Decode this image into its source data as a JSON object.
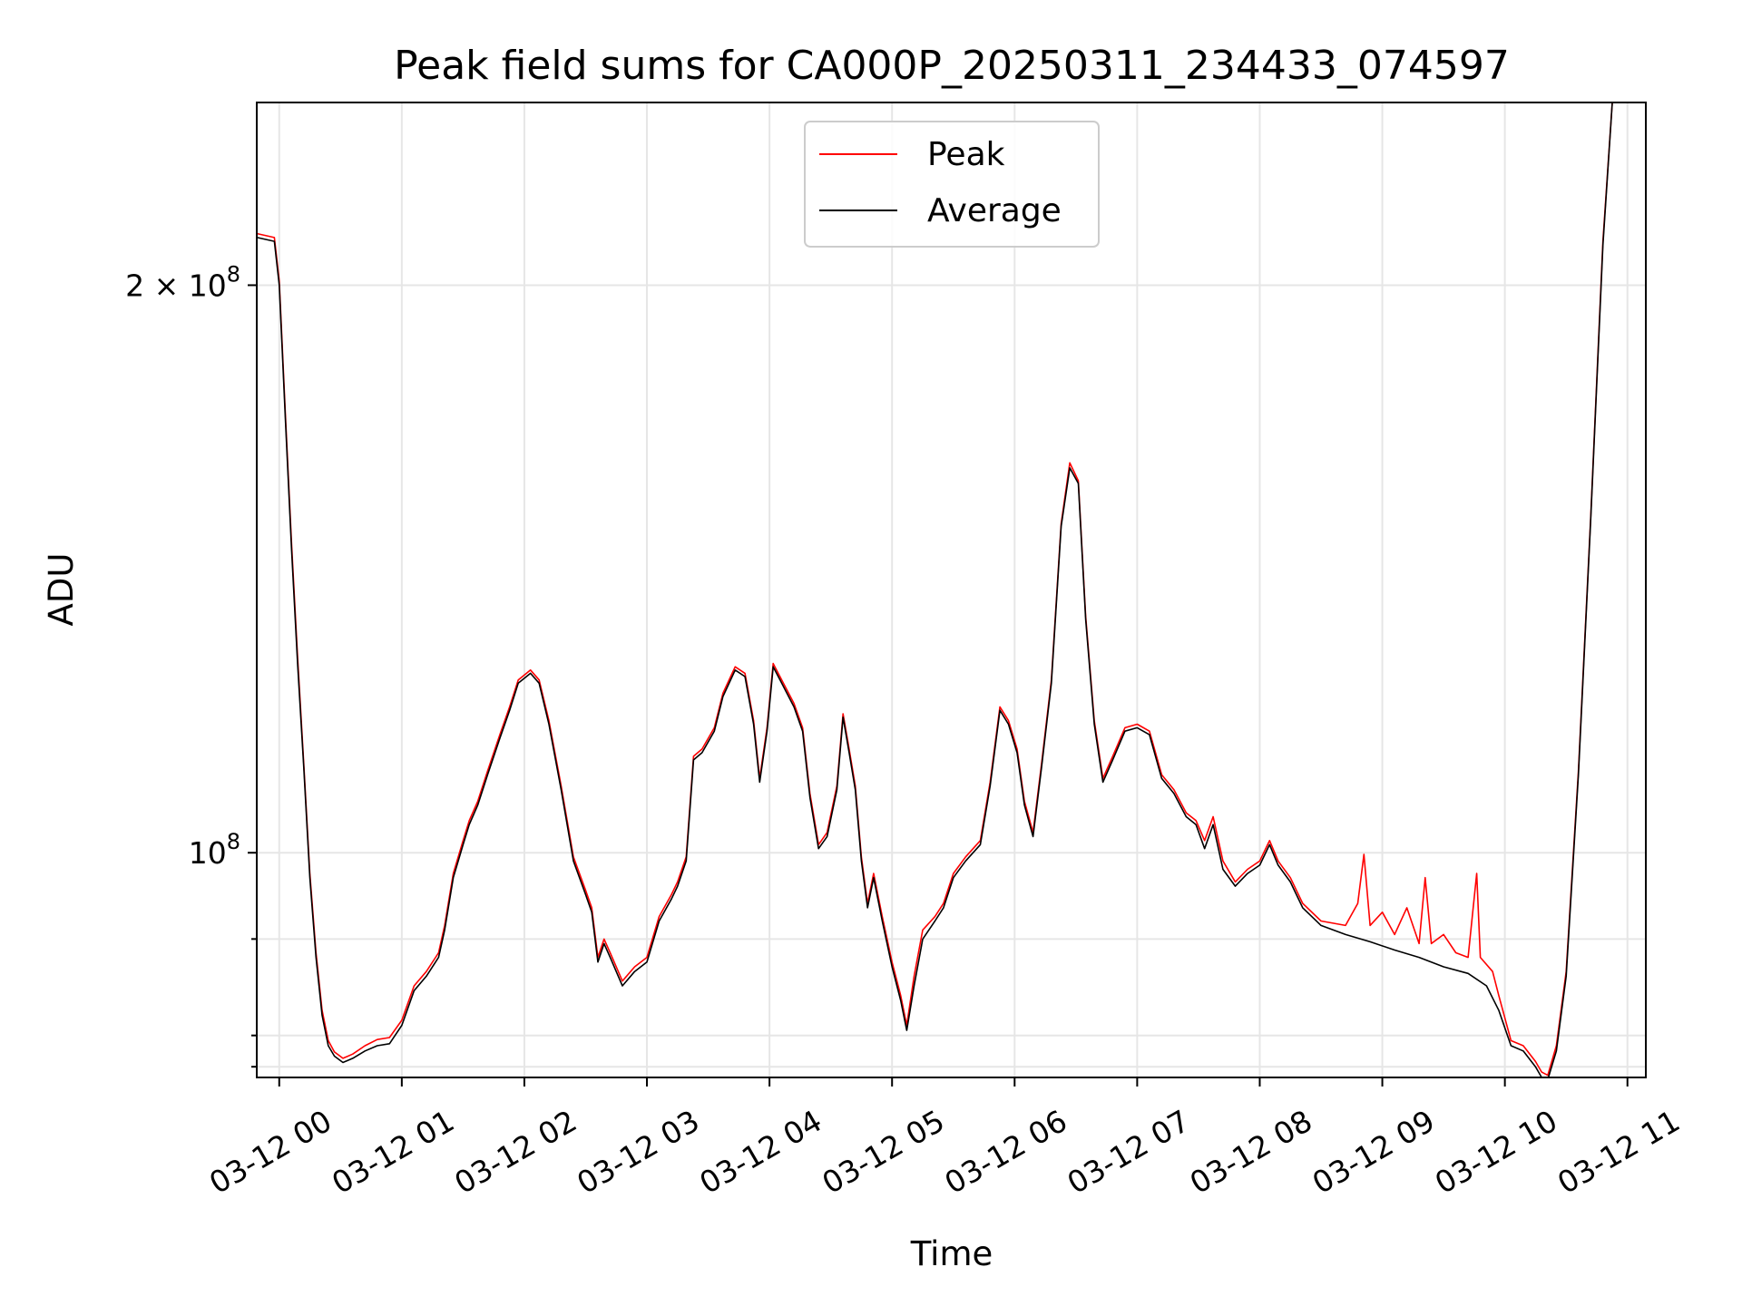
{
  "chart_data": {
    "type": "line",
    "title": "Peak field sums for CA000P_20250311_234433_074597",
    "xlabel": "Time",
    "ylabel": "ADU",
    "y_scale": "log",
    "grid": true,
    "legend_placement": "upper-center",
    "xlim": [
      "03-11 23:49",
      "03-12 11:09"
    ],
    "ylim": [
      76000000,
      250000000
    ],
    "x_tick_labels": [
      "03-12 00",
      "03-12 01",
      "03-12 02",
      "03-12 03",
      "03-12 04",
      "03-12 05",
      "03-12 06",
      "03-12 07",
      "03-12 08",
      "03-12 09",
      "03-12 10",
      "03-12 11"
    ],
    "x_tick_hours": [
      0,
      1,
      2,
      3,
      4,
      5,
      6,
      7,
      8,
      9,
      10,
      11
    ],
    "y_major_ticks": [
      {
        "value": 100000000,
        "label_base": "10",
        "label_exp": "8"
      },
      {
        "value": 200000000,
        "label_base": "2 × 10",
        "label_exp": "8"
      }
    ],
    "y_minor_ticks": [
      80000000,
      90000000,
      77000000
    ],
    "series": [
      {
        "name": "Average",
        "color": "#000000",
        "points": [
          [
            -0.18,
            212000000
          ],
          [
            -0.04,
            211000000
          ],
          [
            0.0,
            200000000
          ],
          [
            0.05,
            170000000
          ],
          [
            0.1,
            145000000
          ],
          [
            0.15,
            126000000
          ],
          [
            0.2,
            111000000
          ],
          [
            0.25,
            97000000
          ],
          [
            0.3,
            88000000
          ],
          [
            0.35,
            82000000
          ],
          [
            0.4,
            79000000
          ],
          [
            0.45,
            78000000
          ],
          [
            0.52,
            77400000
          ],
          [
            0.6,
            77800000
          ],
          [
            0.7,
            78500000
          ],
          [
            0.8,
            79000000
          ],
          [
            0.9,
            79200000
          ],
          [
            1.0,
            81000000
          ],
          [
            1.1,
            84500000
          ],
          [
            1.2,
            86000000
          ],
          [
            1.3,
            88000000
          ],
          [
            1.35,
            91000000
          ],
          [
            1.42,
            97000000
          ],
          [
            1.5,
            101000000
          ],
          [
            1.55,
            103500000
          ],
          [
            1.62,
            106000000
          ],
          [
            1.7,
            110000000
          ],
          [
            1.8,
            115000000
          ],
          [
            1.88,
            119000000
          ],
          [
            1.95,
            123000000
          ],
          [
            2.05,
            124500000
          ],
          [
            2.12,
            123000000
          ],
          [
            2.2,
            117000000
          ],
          [
            2.3,
            108000000
          ],
          [
            2.4,
            99000000
          ],
          [
            2.5,
            95000000
          ],
          [
            2.55,
            93000000
          ],
          [
            2.6,
            87500000
          ],
          [
            2.65,
            89500000
          ],
          [
            2.7,
            88000000
          ],
          [
            2.8,
            85000000
          ],
          [
            2.9,
            86500000
          ],
          [
            3.0,
            87500000
          ],
          [
            3.1,
            92000000
          ],
          [
            3.2,
            94500000
          ],
          [
            3.25,
            96000000
          ],
          [
            3.32,
            99000000
          ],
          [
            3.38,
            112000000
          ],
          [
            3.45,
            113000000
          ],
          [
            3.55,
            116000000
          ],
          [
            3.62,
            121000000
          ],
          [
            3.72,
            125000000
          ],
          [
            3.8,
            124000000
          ],
          [
            3.87,
            117000000
          ],
          [
            3.92,
            109000000
          ],
          [
            3.98,
            116000000
          ],
          [
            4.03,
            125500000
          ],
          [
            4.1,
            123000000
          ],
          [
            4.2,
            119500000
          ],
          [
            4.27,
            116000000
          ],
          [
            4.33,
            107000000
          ],
          [
            4.4,
            100500000
          ],
          [
            4.47,
            102000000
          ],
          [
            4.55,
            108000000
          ],
          [
            4.6,
            118000000
          ],
          [
            4.65,
            113000000
          ],
          [
            4.7,
            108000000
          ],
          [
            4.75,
            99000000
          ],
          [
            4.8,
            93500000
          ],
          [
            4.85,
            97000000
          ],
          [
            4.92,
            92000000
          ],
          [
            5.0,
            87000000
          ],
          [
            5.07,
            83500000
          ],
          [
            5.12,
            80500000
          ],
          [
            5.18,
            85000000
          ],
          [
            5.25,
            90000000
          ],
          [
            5.35,
            92000000
          ],
          [
            5.42,
            93500000
          ],
          [
            5.5,
            97000000
          ],
          [
            5.6,
            99000000
          ],
          [
            5.72,
            101000000
          ],
          [
            5.8,
            108500000
          ],
          [
            5.88,
            119000000
          ],
          [
            5.95,
            117000000
          ],
          [
            6.02,
            113000000
          ],
          [
            6.08,
            106000000
          ],
          [
            6.15,
            102000000
          ],
          [
            6.22,
            111000000
          ],
          [
            6.3,
            123000000
          ],
          [
            6.38,
            149000000
          ],
          [
            6.45,
            160000000
          ],
          [
            6.52,
            157000000
          ],
          [
            6.58,
            133000000
          ],
          [
            6.65,
            117000000
          ],
          [
            6.72,
            109000000
          ],
          [
            6.8,
            112000000
          ],
          [
            6.9,
            116000000
          ],
          [
            7.0,
            116500000
          ],
          [
            7.1,
            115500000
          ],
          [
            7.2,
            109500000
          ],
          [
            7.3,
            107500000
          ],
          [
            7.4,
            104500000
          ],
          [
            7.48,
            103500000
          ],
          [
            7.55,
            100500000
          ],
          [
            7.62,
            103500000
          ],
          [
            7.7,
            98000000
          ],
          [
            7.8,
            96000000
          ],
          [
            7.9,
            97500000
          ],
          [
            8.0,
            98500000
          ],
          [
            8.08,
            101000000
          ],
          [
            8.15,
            98500000
          ],
          [
            8.25,
            96500000
          ],
          [
            8.35,
            93500000
          ],
          [
            8.5,
            91500000
          ],
          [
            8.7,
            90500000
          ],
          [
            8.9,
            89700000
          ],
          [
            9.1,
            88800000
          ],
          [
            9.3,
            88000000
          ],
          [
            9.5,
            87000000
          ],
          [
            9.7,
            86300000
          ],
          [
            9.85,
            85000000
          ],
          [
            9.95,
            82500000
          ],
          [
            10.05,
            79000000
          ],
          [
            10.15,
            78500000
          ],
          [
            10.25,
            77000000
          ],
          [
            10.3,
            76000000
          ],
          [
            10.35,
            75800000
          ],
          [
            10.42,
            78500000
          ],
          [
            10.5,
            86000000
          ],
          [
            10.6,
            110000000
          ],
          [
            10.7,
            150000000
          ],
          [
            10.8,
            210000000
          ],
          [
            10.88,
            252000000
          ]
        ]
      },
      {
        "name": "Peak",
        "color": "#ff0000",
        "points": [
          [
            -0.18,
            213000000
          ],
          [
            -0.04,
            212000000
          ],
          [
            0.0,
            201000000
          ],
          [
            0.05,
            171000000
          ],
          [
            0.1,
            146000000
          ],
          [
            0.15,
            127000000
          ],
          [
            0.2,
            111500000
          ],
          [
            0.25,
            97500000
          ],
          [
            0.3,
            88500000
          ],
          [
            0.35,
            82500000
          ],
          [
            0.4,
            79500000
          ],
          [
            0.45,
            78400000
          ],
          [
            0.52,
            77800000
          ],
          [
            0.6,
            78200000
          ],
          [
            0.7,
            79000000
          ],
          [
            0.8,
            79600000
          ],
          [
            0.9,
            79800000
          ],
          [
            1.0,
            81500000
          ],
          [
            1.1,
            85000000
          ],
          [
            1.2,
            86500000
          ],
          [
            1.3,
            88500000
          ],
          [
            1.35,
            91500000
          ],
          [
            1.42,
            97500000
          ],
          [
            1.5,
            101500000
          ],
          [
            1.55,
            104000000
          ],
          [
            1.62,
            106500000
          ],
          [
            1.7,
            110500000
          ],
          [
            1.8,
            115500000
          ],
          [
            1.88,
            119500000
          ],
          [
            1.95,
            123500000
          ],
          [
            2.05,
            125000000
          ],
          [
            2.12,
            123500000
          ],
          [
            2.2,
            117500000
          ],
          [
            2.3,
            108500000
          ],
          [
            2.4,
            99500000
          ],
          [
            2.5,
            95500000
          ],
          [
            2.55,
            93500000
          ],
          [
            2.6,
            88000000
          ],
          [
            2.65,
            90000000
          ],
          [
            2.7,
            88500000
          ],
          [
            2.8,
            85500000
          ],
          [
            2.9,
            87000000
          ],
          [
            3.0,
            88000000
          ],
          [
            3.1,
            92500000
          ],
          [
            3.2,
            95000000
          ],
          [
            3.25,
            96500000
          ],
          [
            3.32,
            99500000
          ],
          [
            3.38,
            112500000
          ],
          [
            3.45,
            113500000
          ],
          [
            3.55,
            116500000
          ],
          [
            3.62,
            121500000
          ],
          [
            3.72,
            125500000
          ],
          [
            3.8,
            124500000
          ],
          [
            3.87,
            117500000
          ],
          [
            3.92,
            109500000
          ],
          [
            3.98,
            116500000
          ],
          [
            4.03,
            126000000
          ],
          [
            4.1,
            123500000
          ],
          [
            4.2,
            120000000
          ],
          [
            4.27,
            116500000
          ],
          [
            4.33,
            107500000
          ],
          [
            4.4,
            101000000
          ],
          [
            4.47,
            102500000
          ],
          [
            4.55,
            108500000
          ],
          [
            4.6,
            118500000
          ],
          [
            4.65,
            113500000
          ],
          [
            4.7,
            108500000
          ],
          [
            4.75,
            99500000
          ],
          [
            4.8,
            94000000
          ],
          [
            4.85,
            97500000
          ],
          [
            4.92,
            92500000
          ],
          [
            5.0,
            87500000
          ],
          [
            5.07,
            84000000
          ],
          [
            5.12,
            81000000
          ],
          [
            5.18,
            86000000
          ],
          [
            5.25,
            91000000
          ],
          [
            5.35,
            92500000
          ],
          [
            5.42,
            94000000
          ],
          [
            5.5,
            97500000
          ],
          [
            5.6,
            99500000
          ],
          [
            5.72,
            101500000
          ],
          [
            5.8,
            109000000
          ],
          [
            5.88,
            119500000
          ],
          [
            5.95,
            117500000
          ],
          [
            6.02,
            113500000
          ],
          [
            6.08,
            106500000
          ],
          [
            6.15,
            102500000
          ],
          [
            6.22,
            111500000
          ],
          [
            6.3,
            123500000
          ],
          [
            6.38,
            149500000
          ],
          [
            6.45,
            161000000
          ],
          [
            6.52,
            157500000
          ],
          [
            6.58,
            133500000
          ],
          [
            6.65,
            117500000
          ],
          [
            6.72,
            109500000
          ],
          [
            6.8,
            112500000
          ],
          [
            6.9,
            116500000
          ],
          [
            7.0,
            117000000
          ],
          [
            7.1,
            116000000
          ],
          [
            7.2,
            110000000
          ],
          [
            7.3,
            108000000
          ],
          [
            7.4,
            105000000
          ],
          [
            7.48,
            104000000
          ],
          [
            7.55,
            101500000
          ],
          [
            7.62,
            104500000
          ],
          [
            7.7,
            99000000
          ],
          [
            7.8,
            96500000
          ],
          [
            7.9,
            98000000
          ],
          [
            8.0,
            99000000
          ],
          [
            8.08,
            101500000
          ],
          [
            8.15,
            99000000
          ],
          [
            8.25,
            97000000
          ],
          [
            8.35,
            94000000
          ],
          [
            8.5,
            92000000
          ],
          [
            8.7,
            91500000
          ],
          [
            8.8,
            94000000
          ],
          [
            8.85,
            99800000
          ],
          [
            8.9,
            91500000
          ],
          [
            9.0,
            93000000
          ],
          [
            9.1,
            90500000
          ],
          [
            9.2,
            93500000
          ],
          [
            9.3,
            89500000
          ],
          [
            9.35,
            97000000
          ],
          [
            9.4,
            89500000
          ],
          [
            9.5,
            90500000
          ],
          [
            9.6,
            88500000
          ],
          [
            9.7,
            88000000
          ],
          [
            9.77,
            97500000
          ],
          [
            9.8,
            88000000
          ],
          [
            9.9,
            86500000
          ],
          [
            9.95,
            84000000
          ],
          [
            10.05,
            79500000
          ],
          [
            10.15,
            79000000
          ],
          [
            10.25,
            77500000
          ],
          [
            10.3,
            76500000
          ],
          [
            10.35,
            76200000
          ],
          [
            10.42,
            79000000
          ],
          [
            10.5,
            86500000
          ],
          [
            10.6,
            110500000
          ],
          [
            10.7,
            150500000
          ],
          [
            10.8,
            211000000
          ],
          [
            10.88,
            252000000
          ]
        ]
      }
    ]
  }
}
